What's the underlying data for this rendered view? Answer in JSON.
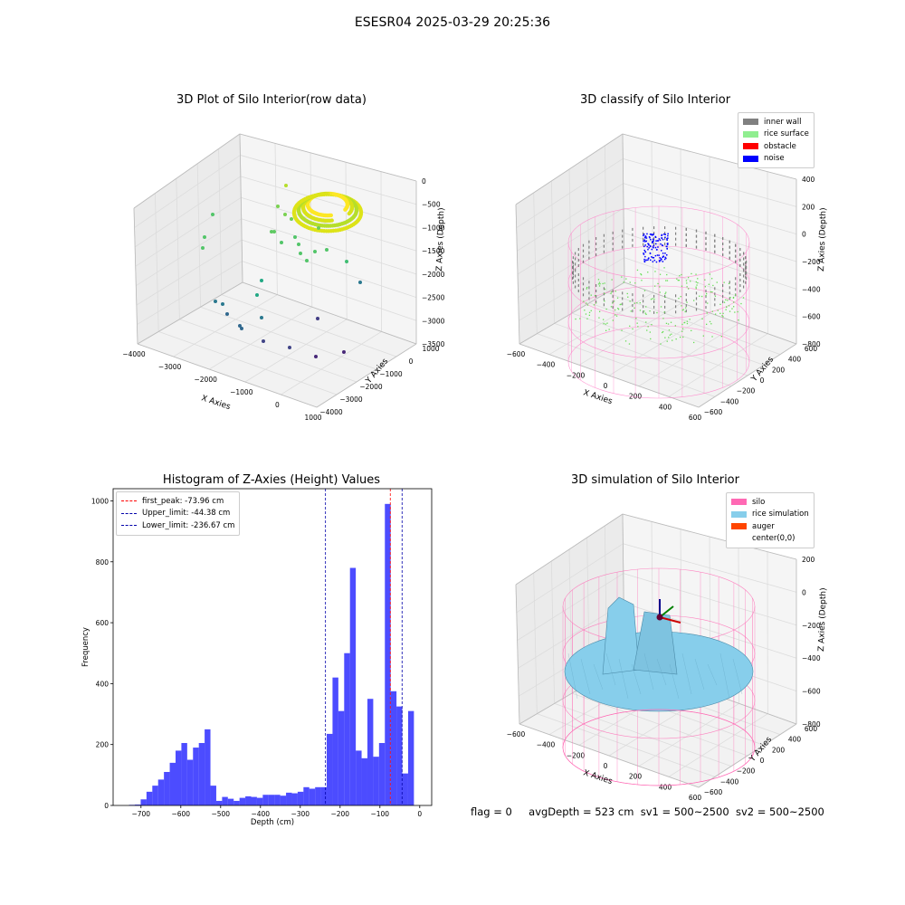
{
  "suptitle": "ESESR04 2025-03-29 20:25:36",
  "footer": {
    "flag": "flag = 0",
    "avgDepth": "avgDepth = 523 cm",
    "sv1": "sv1 = 500~2500",
    "sv2": "sv2 = 500~2500"
  },
  "chart_data": [
    {
      "type": "scatter",
      "title": "3D Plot of Silo Interior(row data)",
      "xlabel": "X Axies",
      "ylabel": "Y Axies",
      "zlabel": "Z Axies (Depth)",
      "xticks": [
        "−4000",
        "−3000",
        "−2000",
        "−1000",
        "0",
        "1000"
      ],
      "yticks": [
        "−4000",
        "−3000",
        "−2000",
        "−1000",
        "0",
        "1000"
      ],
      "zticks": [
        "0",
        "−500",
        "−1000",
        "−1500",
        "−2000",
        "−2500",
        "−3000",
        "−3500"
      ],
      "colormap": "viridis"
    },
    {
      "type": "scatter",
      "title": "3D classify of Silo Interior",
      "xlabel": "X Axies",
      "ylabel": "Y Axies",
      "zlabel": "Z Axies (Depth)",
      "xticks": [
        "−600",
        "−400",
        "−200",
        "0",
        "200",
        "400",
        "600"
      ],
      "yticks": [
        "−600",
        "−400",
        "−200",
        "0",
        "200",
        "400",
        "600"
      ],
      "zticks": [
        "400",
        "200",
        "0",
        "−200",
        "−400",
        "−600",
        "−800"
      ],
      "legend": [
        {
          "label": "inner wall",
          "color": "#808080"
        },
        {
          "label": "rice surface",
          "color": "#90ee90"
        },
        {
          "label": "obstacle",
          "color": "#ff0000"
        },
        {
          "label": "noise",
          "color": "#0000ff"
        }
      ],
      "legend_position": "top-right"
    },
    {
      "type": "bar",
      "title": "Histogram of Z-Axies (Height) Values",
      "xlabel": "Depth (cm)",
      "ylabel": "Frequency",
      "xlim": [
        -770,
        30
      ],
      "ylim": [
        0,
        1040
      ],
      "xticks": [
        -700,
        -600,
        -500,
        -400,
        -300,
        -200,
        -100,
        0
      ],
      "xtick_labels": [
        "−700",
        "−600",
        "−500",
        "−400",
        "−300",
        "−200",
        "−100",
        "0"
      ],
      "yticks": [
        0,
        200,
        400,
        600,
        800,
        1000
      ],
      "bin_start": -730,
      "bin_width": 14.6,
      "values": [
        2,
        3,
        20,
        45,
        65,
        85,
        110,
        140,
        180,
        205,
        150,
        190,
        205,
        250,
        65,
        15,
        28,
        22,
        15,
        25,
        30,
        28,
        25,
        35,
        35,
        35,
        32,
        42,
        40,
        45,
        60,
        55,
        60,
        60,
        235,
        420,
        310,
        500,
        780,
        180,
        155,
        350,
        160,
        205,
        990,
        375,
        325,
        105,
        310
      ],
      "color": "#0000ff",
      "vlines": [
        {
          "label": "first_peak: -73.96 cm",
          "x": -73.96,
          "color": "#ff0000"
        },
        {
          "label": "Upper_limit: -44.38 cm",
          "x": -44.38,
          "color": "#0000aa"
        },
        {
          "label": "Lower_limit: -236.67 cm",
          "x": -236.67,
          "color": "#0000aa"
        }
      ],
      "legend_position": "top-left"
    },
    {
      "type": "area",
      "title": "3D simulation of Silo Interior",
      "xlabel": "X Axies",
      "ylabel": "Y Axies",
      "zlabel": "Z Axies (Depth)",
      "xticks": [
        "−600",
        "−400",
        "−200",
        "0",
        "200",
        "400",
        "600"
      ],
      "yticks": [
        "−600",
        "−400",
        "−200",
        "0",
        "200",
        "400",
        "600"
      ],
      "zticks": [
        "200",
        "0",
        "−200",
        "−400",
        "−600",
        "−800"
      ],
      "legend": [
        {
          "label": "silo",
          "color": "#ff69b4"
        },
        {
          "label": "rice simulation",
          "color": "#87ceeb"
        },
        {
          "label": "auger",
          "color": "#ff4500"
        },
        {
          "label": "center(0,0)",
          "color": "#ffffff"
        }
      ],
      "legend_position": "top-right"
    }
  ]
}
